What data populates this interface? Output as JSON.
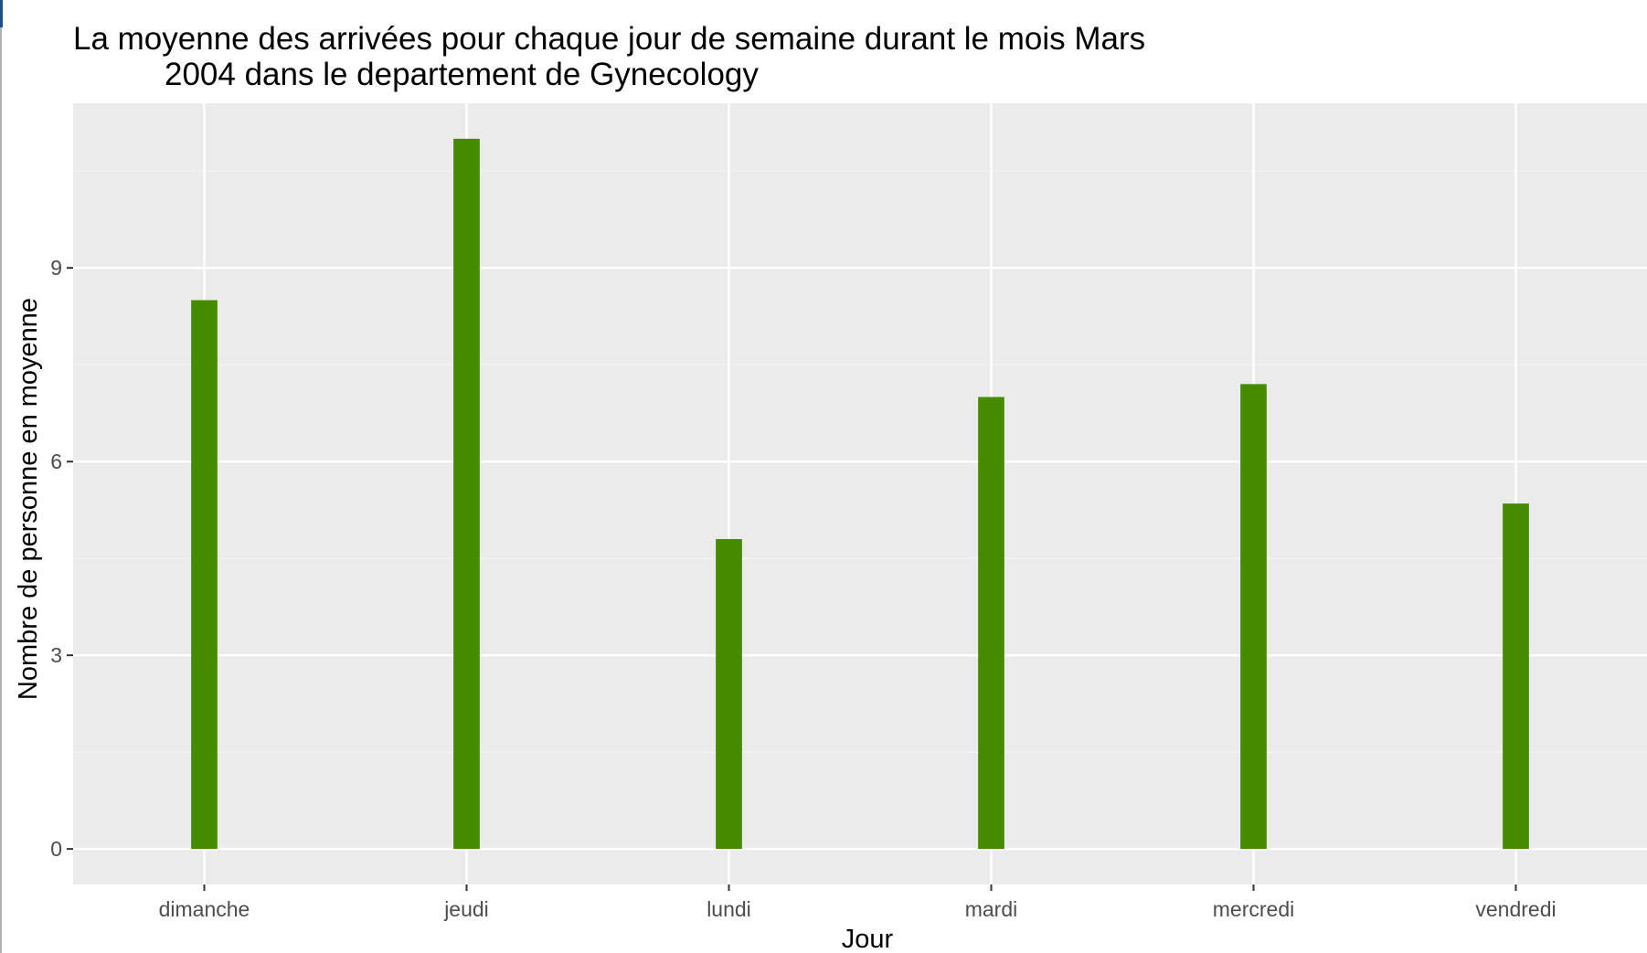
{
  "chart_data": {
    "type": "bar",
    "title_lines": [
      "La moyenne des arrivées pour chaque jour de semaine durant le mois Mars",
      "2004 dans le departement de Gynecology"
    ],
    "xlabel": "Jour",
    "ylabel": "Nombre de personne en moyenne",
    "categories": [
      "dimanche",
      "jeudi",
      "lundi",
      "mardi",
      "mercredi",
      "vendredi"
    ],
    "values": [
      8.5,
      11.0,
      4.8,
      7.0,
      7.2,
      5.35
    ],
    "y_ticks": [
      0,
      3,
      6,
      9
    ],
    "ylim": [
      -0.55,
      11.55
    ],
    "grid": true,
    "legend": "none",
    "colors": {
      "bar": "#458b00",
      "panel": "#ebebeb",
      "grid_major": "#ffffff",
      "grid_minor": "#f5f5f5",
      "tick_label": "#4d4d4d",
      "tick_mark": "#333333",
      "left_edge_accent": "#1f4e8c"
    }
  }
}
